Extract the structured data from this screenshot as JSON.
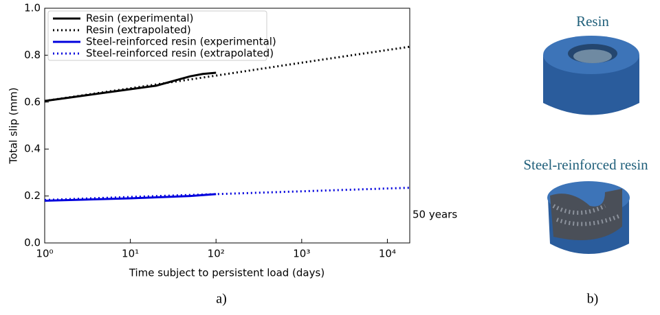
{
  "chart_data": {
    "type": "line",
    "xlabel": "Time subject to persistent load (days)",
    "ylabel": "Total slip (mm)",
    "xscale": "log",
    "xlim": [
      1,
      18250
    ],
    "ylim": [
      0,
      1
    ],
    "xticks": [
      {
        "value": 1,
        "label": "10⁰"
      },
      {
        "value": 10,
        "label": "10¹"
      },
      {
        "value": 100,
        "label": "10²"
      },
      {
        "value": 1000,
        "label": "10³"
      },
      {
        "value": 10000,
        "label": "10⁴"
      }
    ],
    "yticks": [
      {
        "value": 0,
        "label": "0.0"
      },
      0.2,
      0.4,
      0.6,
      0.8,
      {
        "value": 1,
        "label": "1.0"
      }
    ],
    "legend": "upper left",
    "series": [
      {
        "name": "Resin (experimental)",
        "color": "#000000",
        "style": "solid",
        "x": [
          1,
          2,
          5,
          10,
          20,
          50,
          70,
          100
        ],
        "values": [
          0.605,
          0.62,
          0.64,
          0.655,
          0.67,
          0.71,
          0.72,
          0.725
        ]
      },
      {
        "name": "Resin (extrapolated)",
        "color": "#000000",
        "style": "dotted",
        "x": [
          1,
          10,
          100,
          1000,
          10000,
          18250
        ],
        "values": [
          0.605,
          0.659,
          0.713,
          0.768,
          0.822,
          0.836
        ]
      },
      {
        "name": "Steel-reinforced resin (experimental)",
        "color": "#0000dd",
        "style": "solid",
        "x": [
          1,
          10,
          50,
          100
        ],
        "values": [
          0.18,
          0.19,
          0.2,
          0.208
        ]
      },
      {
        "name": "Steel-reinforced resin (extrapolated)",
        "color": "#0000dd",
        "style": "dotted",
        "x": [
          1,
          10,
          100,
          1000,
          10000,
          18250
        ],
        "values": [
          0.183,
          0.196,
          0.208,
          0.22,
          0.232,
          0.235
        ]
      }
    ],
    "annotation": "50 years",
    "panel_label": "a)"
  },
  "panel_b": {
    "label": "b)",
    "top_caption": "Resin",
    "bottom_caption": "Steel-reinforced resin"
  }
}
